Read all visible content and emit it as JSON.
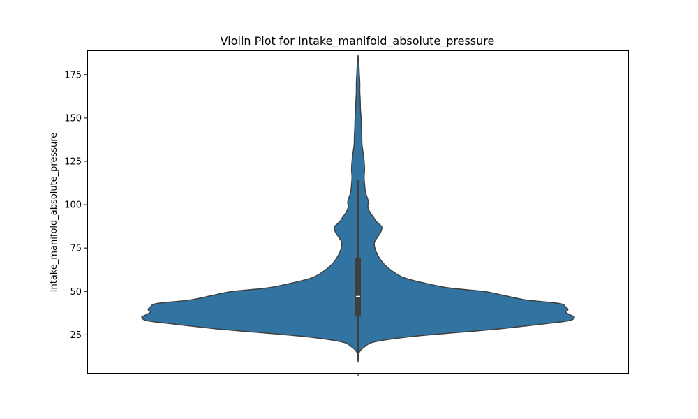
{
  "chart_data": {
    "type": "violin",
    "title": "Violin Plot for Intake_manifold_absolute_pressure",
    "xlabel": "",
    "ylabel": "Intake_manifold_absolute_pressure",
    "ylim": [
      3,
      189
    ],
    "y_ticks": [
      25,
      50,
      75,
      100,
      125,
      150,
      175
    ],
    "x_ticks": [
      ""
    ],
    "grid": false,
    "colors": {
      "violin_fill": "#3274a1",
      "violin_edge": "#3f3f3f",
      "box": "#3f3f3f",
      "median": "#ffffff"
    },
    "density": {
      "y": [
        9.5,
        12,
        15,
        18,
        21,
        24,
        28,
        31,
        33,
        35,
        36.5,
        38,
        39.5,
        41,
        43,
        45,
        47.5,
        50,
        52,
        55,
        58,
        62,
        66,
        70,
        74,
        78,
        81,
        84,
        87,
        89,
        91,
        93,
        95,
        97,
        99,
        101,
        103,
        106,
        109,
        112,
        116,
        120,
        125,
        130,
        135,
        140,
        145,
        150,
        155,
        160,
        165,
        170,
        175,
        180,
        184,
        186
      ],
      "width": [
        0,
        0.002,
        0.006,
        0.03,
        0.08,
        0.25,
        0.62,
        0.84,
        0.97,
        1.0,
        0.98,
        0.96,
        0.97,
        0.96,
        0.93,
        0.78,
        0.68,
        0.58,
        0.42,
        0.3,
        0.21,
        0.155,
        0.118,
        0.095,
        0.08,
        0.075,
        0.088,
        0.104,
        0.11,
        0.095,
        0.08,
        0.07,
        0.058,
        0.05,
        0.045,
        0.048,
        0.045,
        0.037,
        0.032,
        0.03,
        0.028,
        0.03,
        0.028,
        0.023,
        0.018,
        0.017,
        0.015,
        0.014,
        0.011,
        0.01,
        0.008,
        0.008,
        0.006,
        0.004,
        0.002,
        0
      ]
    },
    "box": {
      "q1": 35.5,
      "median": 47,
      "q3": 69.5,
      "whisker_low": 12,
      "whisker_high": 114
    }
  }
}
